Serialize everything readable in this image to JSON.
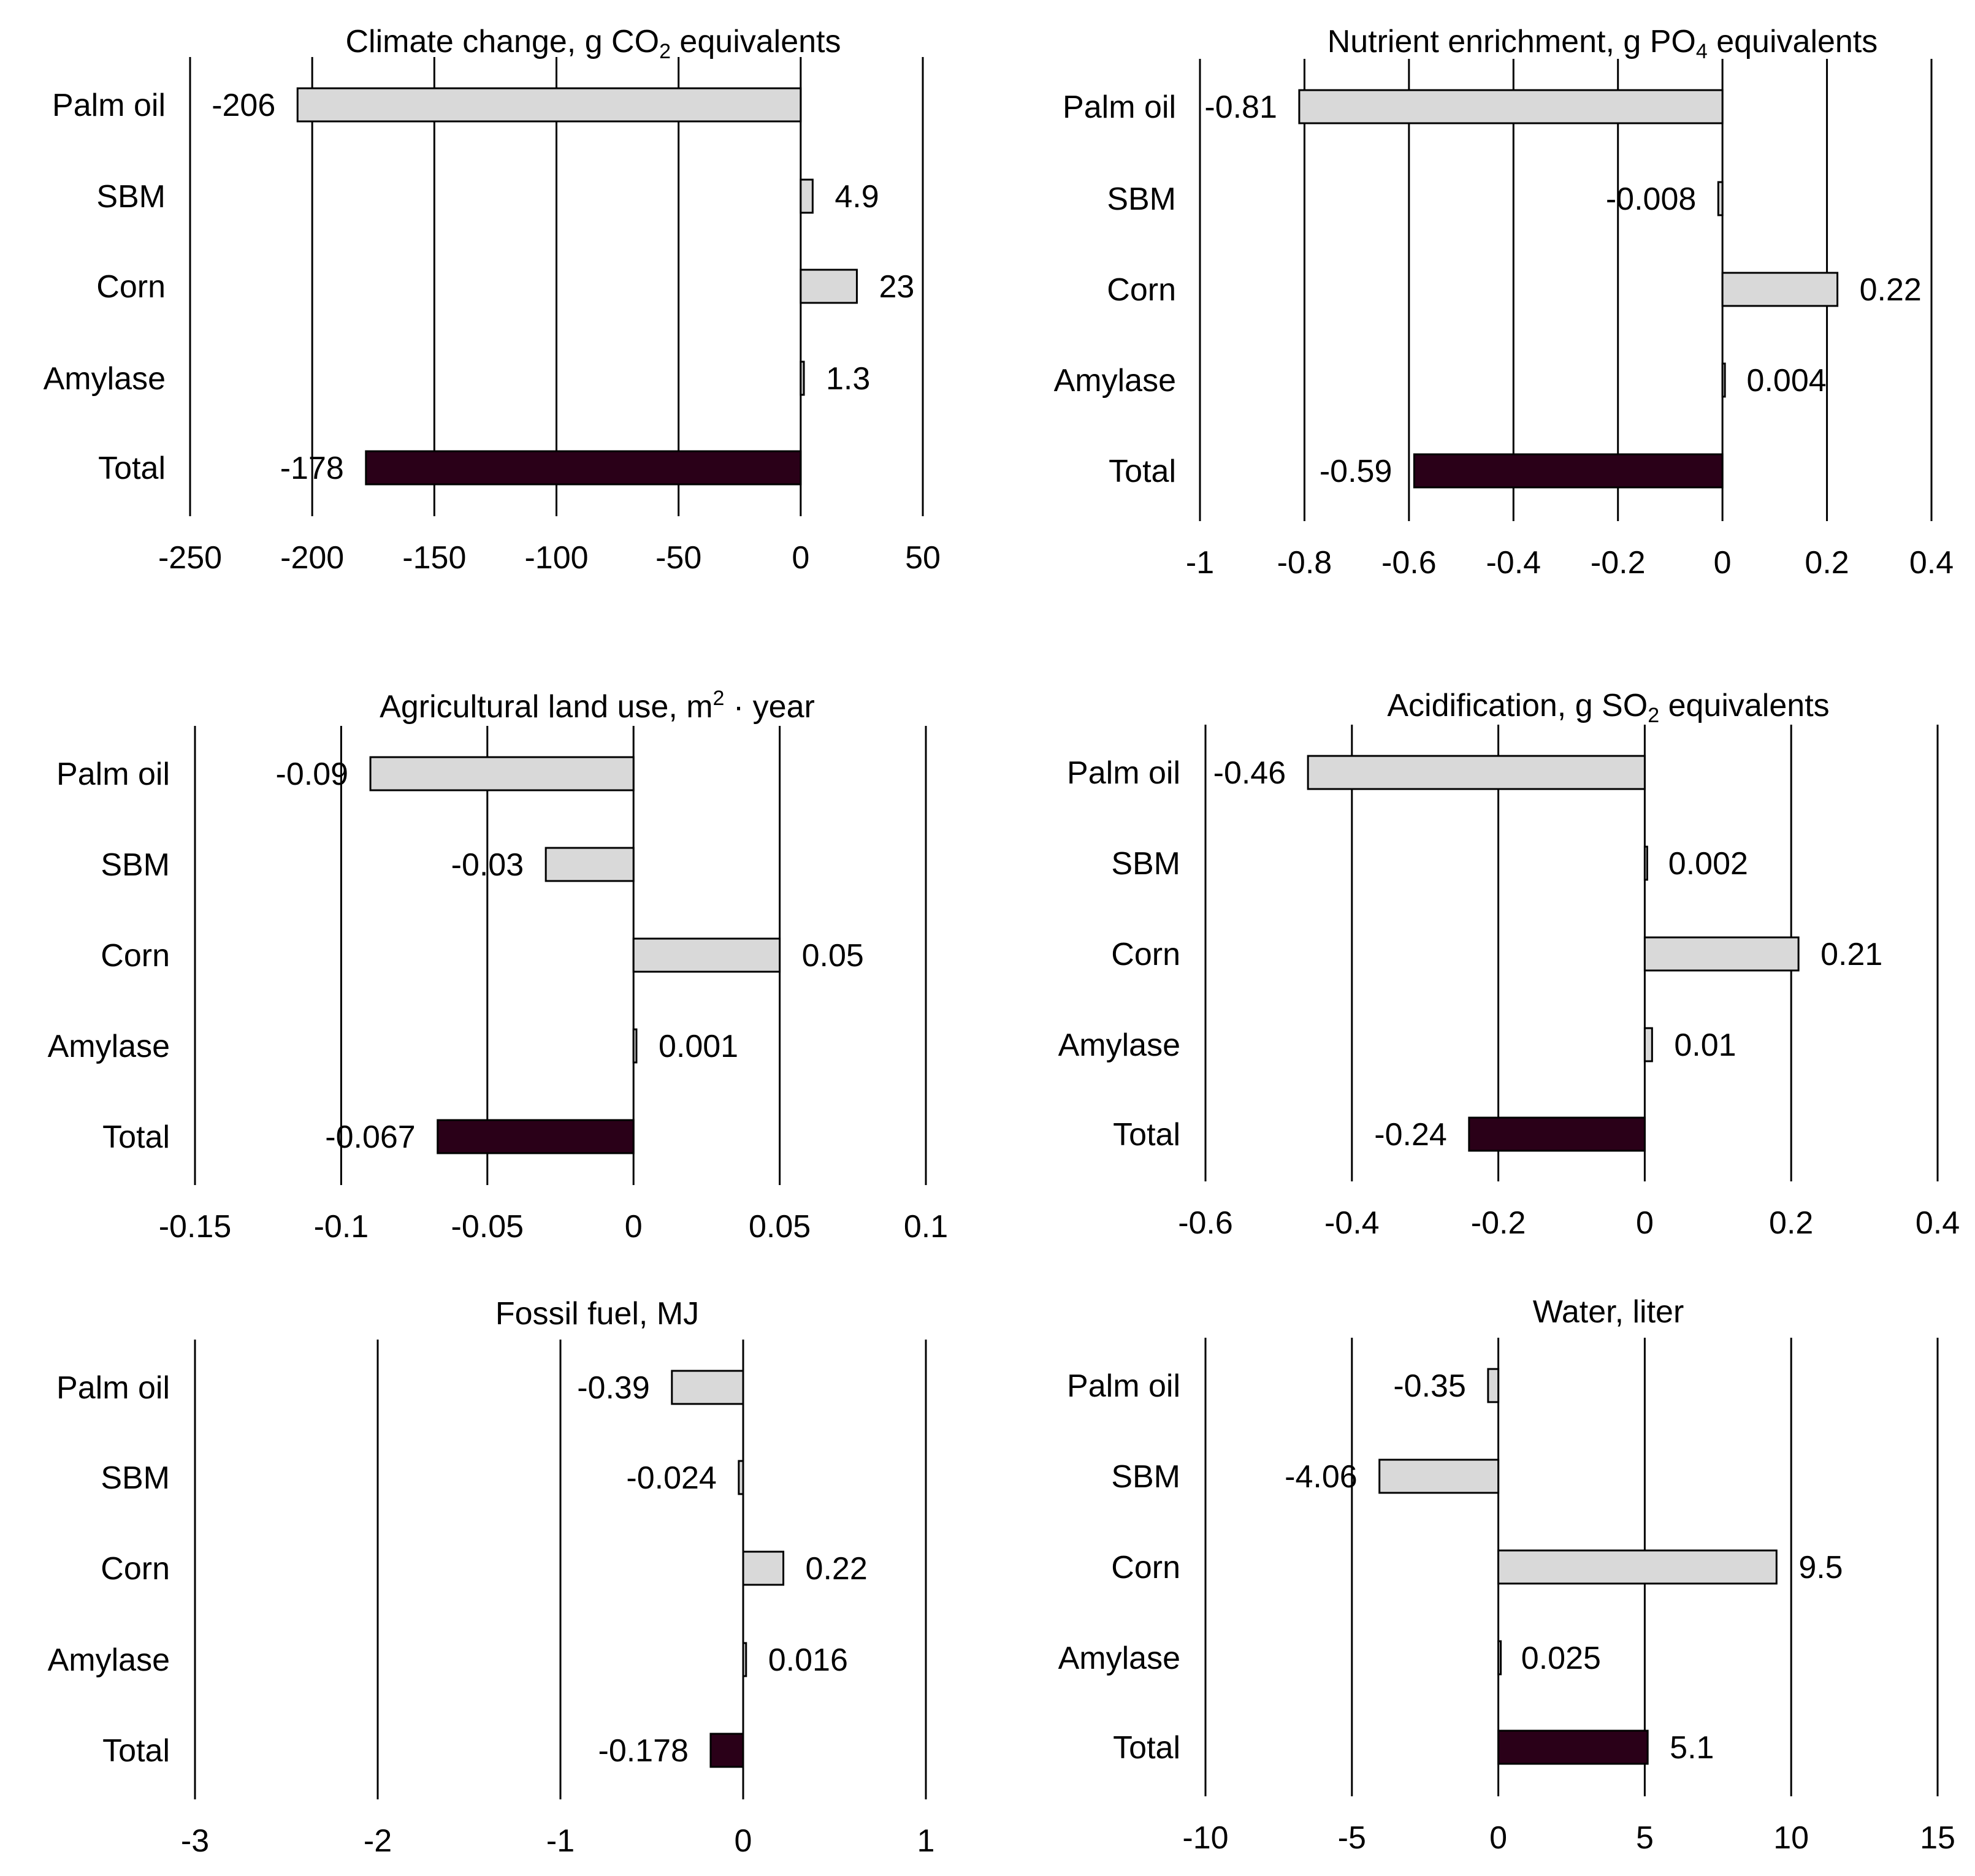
{
  "colors": {
    "bar_fill": "#d9d9d9",
    "total_fill": "#2a0018",
    "stroke": "#000000",
    "background": "#ffffff"
  },
  "chart_data": [
    {
      "type": "bar",
      "orientation": "horizontal",
      "title_parts": [
        "Climate change, g CO",
        "2",
        " equivalents"
      ],
      "title_style": [
        "normal",
        "sub",
        "normal"
      ],
      "categories": [
        "Palm oil",
        "SBM",
        "Corn",
        "Amylase",
        "Total"
      ],
      "values": [
        -206,
        4.9,
        23,
        1.3,
        -178
      ],
      "value_labels": [
        "-206",
        "4.9",
        "23",
        "1.3",
        "-178"
      ],
      "xlim": [
        -250,
        50
      ],
      "ticks": [
        -250,
        -200,
        -150,
        -100,
        -50,
        0,
        50
      ],
      "tick_labels": [
        "-250",
        "-200",
        "-150",
        "-100",
        "-50",
        "0",
        "50"
      ],
      "grid": true
    },
    {
      "type": "bar",
      "orientation": "horizontal",
      "title_parts": [
        "Nutrient enrichment, g PO",
        "4",
        " equivalents"
      ],
      "title_style": [
        "normal",
        "sub",
        "normal"
      ],
      "categories": [
        "Palm oil",
        "SBM",
        "Corn",
        "Amylase",
        "Total"
      ],
      "values": [
        -0.81,
        -0.008,
        0.22,
        0.004,
        -0.59
      ],
      "value_labels": [
        "-0.81",
        "-0.008",
        "0.22",
        "0.004",
        "-0.59"
      ],
      "xlim": [
        -1,
        0.4
      ],
      "ticks": [
        -1,
        -0.8,
        -0.6,
        -0.4,
        -0.2,
        0,
        0.2,
        0.4
      ],
      "tick_labels": [
        "-1",
        "-0.8",
        "-0.6",
        "-0.4",
        "-0.2",
        "0",
        "0.2",
        "0.4"
      ],
      "grid": true
    },
    {
      "type": "bar",
      "orientation": "horizontal",
      "title_parts": [
        "Agricultural land use, m",
        "2",
        " · year"
      ],
      "title_style": [
        "normal",
        "sup",
        "normal"
      ],
      "categories": [
        "Palm oil",
        "SBM",
        "Corn",
        "Amylase",
        "Total"
      ],
      "values": [
        -0.09,
        -0.03,
        0.05,
        0.001,
        -0.067
      ],
      "value_labels": [
        "-0.09",
        "-0.03",
        "0.05",
        "0.001",
        "-0.067"
      ],
      "xlim": [
        -0.15,
        0.1
      ],
      "ticks": [
        -0.15,
        -0.1,
        -0.05,
        0,
        0.05,
        0.1
      ],
      "tick_labels": [
        "-0.15",
        "-0.1",
        "-0.05",
        "0",
        "0.05",
        "0.1"
      ],
      "grid": true
    },
    {
      "type": "bar",
      "orientation": "horizontal",
      "title_parts": [
        "Acidification, g SO",
        "2",
        " equivalents"
      ],
      "title_style": [
        "normal",
        "sub",
        "normal"
      ],
      "categories": [
        "Palm oil",
        "SBM",
        "Corn",
        "Amylase",
        "Total"
      ],
      "values": [
        -0.46,
        0.002,
        0.21,
        0.01,
        -0.24
      ],
      "value_labels": [
        "-0.46",
        "0.002",
        "0.21",
        "0.01",
        "-0.24"
      ],
      "xlim": [
        -0.6,
        0.4
      ],
      "ticks": [
        -0.6,
        -0.4,
        -0.2,
        0,
        0.2,
        0.4
      ],
      "tick_labels": [
        "-0.6",
        "-0.4",
        "-0.2",
        "0",
        "0.2",
        "0.4"
      ],
      "grid": true
    },
    {
      "type": "bar",
      "orientation": "horizontal",
      "title_parts": [
        "Fossil fuel, MJ"
      ],
      "title_style": [
        "normal"
      ],
      "categories": [
        "Palm oil",
        "SBM",
        "Corn",
        "Amylase",
        "Total"
      ],
      "values": [
        -0.39,
        -0.024,
        0.22,
        0.016,
        -0.178
      ],
      "value_labels": [
        "-0.39",
        "-0.024",
        "0.22",
        "0.016",
        "-0.178"
      ],
      "xlim": [
        -3,
        1
      ],
      "ticks": [
        -3,
        -2,
        -1,
        0,
        1
      ],
      "tick_labels": [
        "-3",
        "-2",
        "-1",
        "0",
        "1"
      ],
      "grid": true
    },
    {
      "type": "bar",
      "orientation": "horizontal",
      "title_parts": [
        "Water, liter"
      ],
      "title_style": [
        "normal"
      ],
      "categories": [
        "Palm oil",
        "SBM",
        "Corn",
        "Amylase",
        "Total"
      ],
      "values": [
        -0.35,
        -4.06,
        9.5,
        0.025,
        5.1
      ],
      "value_labels": [
        "-0.35",
        "-4.06",
        "9.5",
        "0.025",
        "5.1"
      ],
      "xlim": [
        -10,
        15
      ],
      "ticks": [
        -10,
        -5,
        0,
        5,
        10,
        15
      ],
      "tick_labels": [
        "-10",
        "-5",
        "0",
        "5",
        "10",
        "15"
      ],
      "grid": true
    }
  ]
}
